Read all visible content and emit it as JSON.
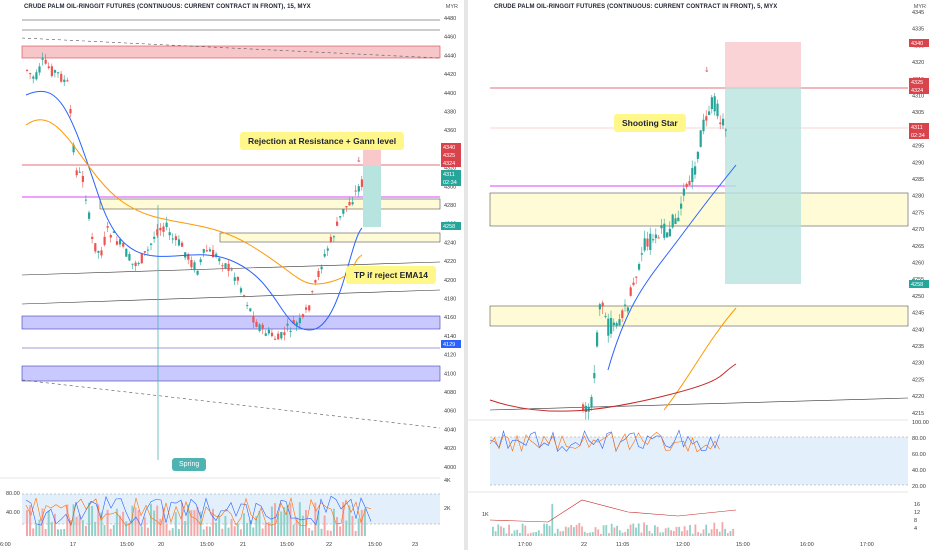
{
  "colors": {
    "up": "#26a69a",
    "down": "#ef5350",
    "ema_fast": "#2962ff",
    "ema_slow": "#ff9800",
    "ema_long": "#c62828",
    "resistance_zone": "#f7c6c9",
    "support_zone": "#c9c8ff",
    "yellow_zone": "#fffbd6",
    "magenta": "#e040fb",
    "annotation": "#fff78a",
    "tp_zone": "#b8e4df",
    "sl_zone": "#f8c8ca"
  },
  "left": {
    "title": "CRUDE PALM OIL-RINGGIT FUTURES (CONTINUOUS: CURRENT CONTRACT IN FRONT), 15, MYX",
    "currency": "MYR",
    "yaxis": [
      "4480",
      "4460",
      "4440",
      "4420",
      "4400",
      "4380",
      "4360",
      "4340",
      "4320",
      "4300",
      "4280",
      "4260",
      "4240",
      "4220",
      "4200",
      "4180",
      "4160",
      "4140",
      "4120",
      "4100",
      "4080",
      "4060",
      "4040",
      "4020",
      "4000"
    ],
    "tags": [
      "4340",
      "4325",
      "4324",
      "4311",
      "02:34",
      "4258",
      "4129"
    ],
    "xaxis": [
      "6:00",
      "17",
      "15:00",
      "20",
      "15:00",
      "21",
      "15:00",
      "22",
      "15:00",
      "23"
    ],
    "osc_axis": [
      "80.00",
      "40.00"
    ],
    "vol_axis": [
      "4K",
      "2K"
    ],
    "annotations": {
      "rejection": "Rejection at Resistance + Gann level",
      "tp": "TP if reject EMA14",
      "spring": "Spring"
    }
  },
  "right": {
    "title": "CRUDE PALM OIL-RINGGIT FUTURES (CONTINUOUS: CURRENT CONTRACT IN FRONT), 5, MYX",
    "currency": "MYR",
    "yaxis": [
      "4345",
      "4335",
      "4330",
      "4320",
      "4315",
      "4310",
      "4305",
      "4300",
      "4295",
      "4290",
      "4285",
      "4280",
      "4275",
      "4270",
      "4265",
      "4260",
      "4255",
      "4250",
      "4245",
      "4240",
      "4235",
      "4230",
      "4225",
      "4220",
      "4215"
    ],
    "tags": [
      "4340",
      "4325",
      "4324",
      "4311",
      "02:34",
      "4258"
    ],
    "xaxis": [
      "17:00",
      "22",
      "11:05",
      "12:00",
      "15:00",
      "16:00",
      "17:00"
    ],
    "osc_axis": [
      "100.00",
      "80.00",
      "60.00",
      "40.00",
      "20.00"
    ],
    "vol_axis": [
      "1K",
      "16",
      "12",
      "8",
      "4"
    ],
    "annotations": {
      "shooting_star": "Shooting Star"
    }
  }
}
